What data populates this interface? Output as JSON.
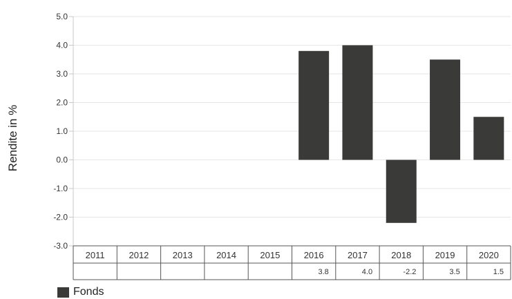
{
  "chart_data": {
    "type": "bar",
    "ylabel": "Rendite in %",
    "ylim": [
      -3.0,
      5.0
    ],
    "yticks": [
      "5.0",
      "4.0",
      "3.0",
      "2.0",
      "1.0",
      "0.0",
      "-1.0",
      "-2.0",
      "-3.0"
    ],
    "categories": [
      "2011",
      "2012",
      "2013",
      "2014",
      "2015",
      "2016",
      "2017",
      "2018",
      "2019",
      "2020"
    ],
    "series": [
      {
        "name": "Fonds",
        "color": "#3a3b39",
        "values": [
          null,
          null,
          null,
          null,
          null,
          3.8,
          4.0,
          -2.2,
          3.5,
          1.5
        ],
        "labels": [
          "",
          "",
          "",
          "",
          "",
          "3.8",
          "4.0",
          "-2.2",
          "3.5",
          "1.5"
        ]
      }
    ],
    "grid": true,
    "legend": "bottom-left"
  }
}
